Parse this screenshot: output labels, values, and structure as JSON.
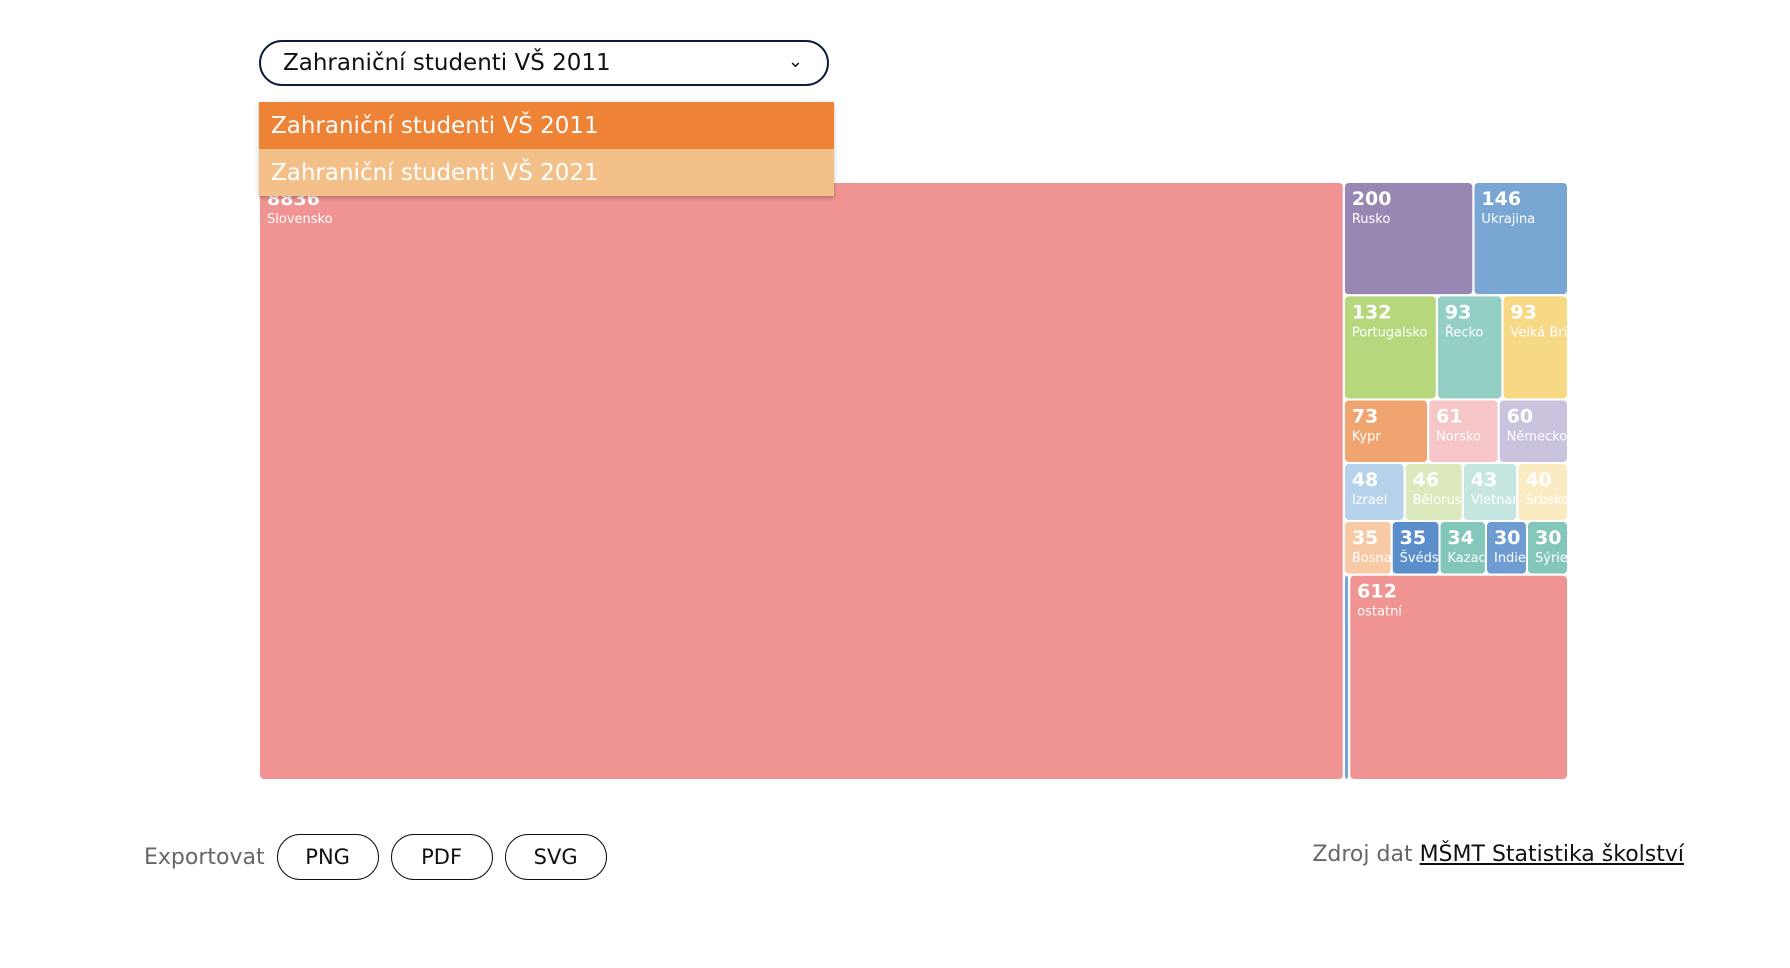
{
  "dropdown": {
    "selected": "Zahraniční studenti VŠ 2011",
    "options": [
      "Zahraniční studenti VŠ 2011",
      "Zahraniční studenti VŠ 2021"
    ]
  },
  "chart_data": {
    "type": "treemap",
    "categories": [
      "Slovensko",
      "Rusko",
      "Ukrajina",
      "Portugalsko",
      "Řecko",
      "Velká Británie",
      "Kypr",
      "Norsko",
      "Německo",
      "Izrael",
      "Bělorusko",
      "Vietnam",
      "Srbsko",
      "Bosna a Hercegovina",
      "Švédsko",
      "Kazachstán",
      "Indie",
      "Sýrie",
      null,
      "ostatní"
    ],
    "values": [
      8836,
      200,
      146,
      132,
      93,
      93,
      73,
      61,
      60,
      48,
      46,
      43,
      40,
      35,
      35,
      34,
      30,
      30,
      15,
      612
    ],
    "colors": [
      "#f09393",
      "#9886b3",
      "#79a6d2",
      "#b7d77c",
      "#93cfc4",
      "#f7d985",
      "#f0a571",
      "#f5c5c8",
      "#cbc2de",
      "#b6d1ea",
      "#dbe9bc",
      "#c6e6e1",
      "#fbebc2",
      "#f7c9a4",
      "#5b8fcb",
      "#83c7ba",
      "#6e9bd0",
      "#83c7ba",
      "#79a6d2",
      "#f09393"
    ]
  },
  "export": {
    "label": "Exportovat",
    "buttons": [
      "PNG",
      "PDF",
      "SVG"
    ]
  },
  "source": {
    "label": "Zdroj dat",
    "link": "MŠMT Statistika školství"
  }
}
